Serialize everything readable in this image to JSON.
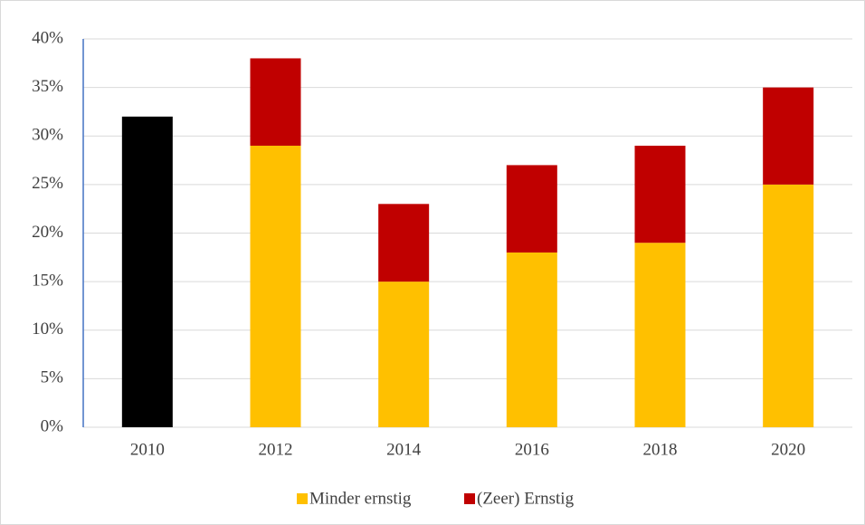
{
  "chart_data": {
    "type": "stacked_bar",
    "categories": [
      "2010",
      "2012",
      "2014",
      "2016",
      "2018",
      "2020"
    ],
    "series": [
      {
        "name": "Minder ernstig",
        "color": "#ffc000",
        "point_colors": [
          "#000000",
          "#ffc000",
          "#ffc000",
          "#ffc000",
          "#ffc000",
          "#ffc000"
        ],
        "values": [
          32,
          29,
          15,
          18,
          19,
          25
        ]
      },
      {
        "name": "(Zeer) Ernstig",
        "color": "#c00000",
        "values": [
          null,
          9,
          8,
          9,
          10,
          10
        ]
      }
    ],
    "ylim": [
      0,
      40
    ],
    "yticks": [
      {
        "value": 0,
        "label": "0%"
      },
      {
        "value": 5,
        "label": "5%"
      },
      {
        "value": 10,
        "label": "10%"
      },
      {
        "value": 15,
        "label": "15%"
      },
      {
        "value": 20,
        "label": "20%"
      },
      {
        "value": 25,
        "label": "25%"
      },
      {
        "value": 30,
        "label": "30%"
      },
      {
        "value": 35,
        "label": "35%"
      },
      {
        "value": 40,
        "label": "40%"
      }
    ],
    "grid": true,
    "legend": "bottom"
  }
}
